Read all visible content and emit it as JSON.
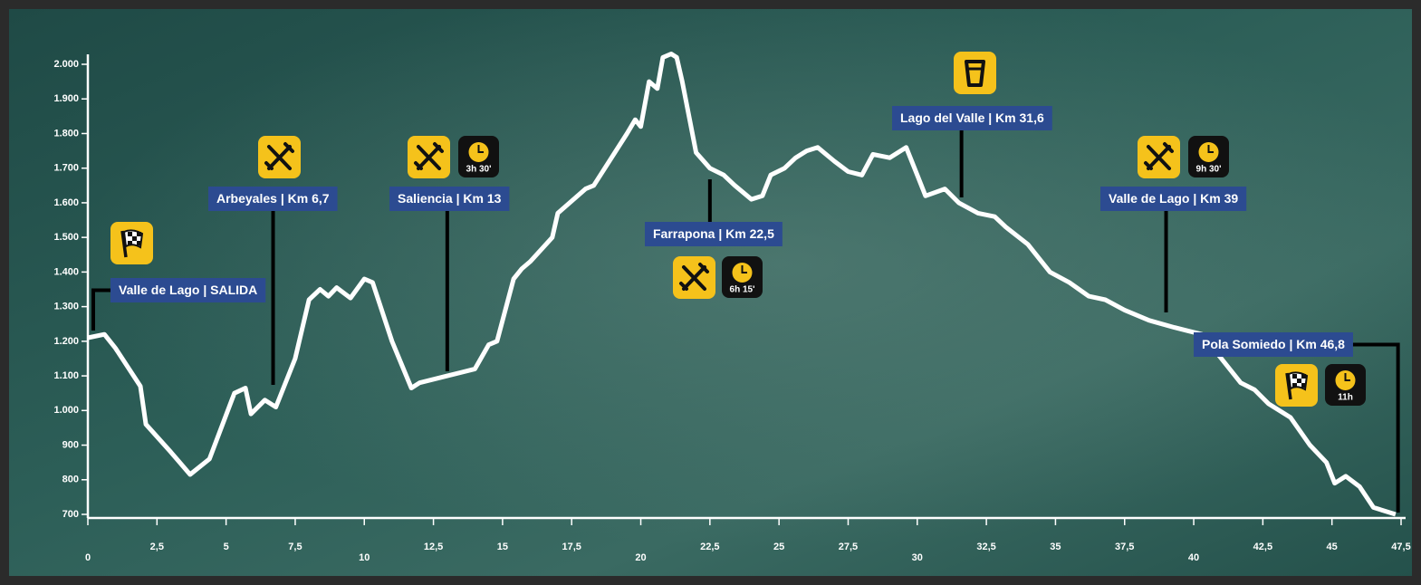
{
  "chart_data": {
    "type": "line",
    "xlim": [
      0,
      47.5
    ],
    "xticks": [
      0,
      {
        "value": 2.5,
        "label": "2,5"
      },
      5,
      {
        "value": 7.5,
        "label": "7,5"
      },
      10,
      {
        "value": 12.5,
        "label": "12,5"
      },
      15,
      {
        "value": 17.5,
        "label": "17,5"
      },
      20,
      {
        "value": 22.5,
        "label": "22,5"
      },
      25,
      {
        "value": 27.5,
        "label": "27,5"
      },
      30,
      {
        "value": 32.5,
        "label": "32,5"
      },
      35,
      {
        "value": 37.5,
        "label": "37,5"
      },
      40,
      {
        "value": 42.5,
        "label": "42,5"
      },
      45,
      {
        "value": 47.5,
        "label": "47,5"
      }
    ],
    "ylim": [
      700,
      2000
    ],
    "yticks": [
      700,
      800,
      900,
      {
        "value": 1000,
        "label": "1.000"
      },
      {
        "value": 1100,
        "label": "1.100"
      },
      {
        "value": 1200,
        "label": "1.200"
      },
      {
        "value": 1300,
        "label": "1.300"
      },
      {
        "value": 1400,
        "label": "1.400"
      },
      {
        "value": 1500,
        "label": "1.500"
      },
      {
        "value": 1600,
        "label": "1.600"
      },
      {
        "value": 1700,
        "label": "1.700"
      },
      {
        "value": 1800,
        "label": "1.800"
      },
      {
        "value": 1900,
        "label": "1.900"
      },
      {
        "value": 2000,
        "label": "2.000"
      }
    ],
    "color": "#ffffff",
    "x": [
      0,
      0.6,
      1,
      1.9,
      2.1,
      3,
      3.7,
      4.4,
      5.3,
      5.7,
      5.9,
      6.4,
      6.8,
      7.5,
      8,
      8.4,
      8.7,
      9,
      9.5,
      10,
      10.3,
      11,
      11.7,
      12,
      13,
      14,
      14.5,
      14.8,
      15.4,
      15.7,
      16,
      16.8,
      17,
      18,
      18.3,
      19.5,
      19.8,
      20,
      20.3,
      20.6,
      20.8,
      21.1,
      21.3,
      21.5,
      22,
      22.5,
      23,
      23.4,
      24,
      24.4,
      24.7,
      25.2,
      25.6,
      26,
      26.4,
      27,
      27.5,
      28,
      28.4,
      29,
      29.6,
      30,
      30.3,
      31,
      31.5,
      32.2,
      32.8,
      33.2,
      34,
      34.8,
      35.5,
      36.2,
      36.8,
      37.5,
      38.4,
      39.3,
      39.8,
      40.3,
      41,
      41.7,
      42.2,
      42.7,
      43.5,
      44.2,
      44.8,
      45.1,
      45.5,
      46,
      46.5,
      47.3
    ],
    "values": [
      1210,
      1220,
      1180,
      1070,
      960,
      880,
      815,
      860,
      1050,
      1065,
      990,
      1030,
      1010,
      1150,
      1320,
      1350,
      1330,
      1355,
      1325,
      1380,
      1370,
      1200,
      1065,
      1080,
      1100,
      1120,
      1190,
      1200,
      1380,
      1410,
      1430,
      1500,
      1570,
      1640,
      1650,
      1800,
      1840,
      1820,
      1950,
      1930,
      2020,
      2030,
      2020,
      1950,
      1745,
      1700,
      1680,
      1650,
      1610,
      1620,
      1680,
      1700,
      1730,
      1750,
      1760,
      1720,
      1690,
      1680,
      1740,
      1730,
      1760,
      1680,
      1620,
      1640,
      1600,
      1570,
      1560,
      1530,
      1480,
      1400,
      1370,
      1330,
      1320,
      1290,
      1260,
      1240,
      1230,
      1220,
      1150,
      1080,
      1060,
      1020,
      980,
      900,
      850,
      790,
      810,
      780,
      720,
      700
    ],
    "annotations": [
      {
        "label": "Valle de Lago | SALIDA",
        "x": 0
      },
      {
        "label": "Arbeyales | Km 6,7",
        "x": 6.7
      },
      {
        "label": "Saliencia | Km 13",
        "x": 13,
        "time": "3h 30'"
      },
      {
        "label": "Farrapona | Km 22,5",
        "x": 22.5,
        "time": "6h 15'"
      },
      {
        "label": "Lago del Valle | Km 31,6",
        "x": 31.6
      },
      {
        "label": "Valle de Lago | Km 39",
        "x": 39,
        "time": "9h 30'"
      },
      {
        "label": "Pola Somiedo | Km 46,8",
        "x": 46.8,
        "time": "11h"
      }
    ]
  }
}
